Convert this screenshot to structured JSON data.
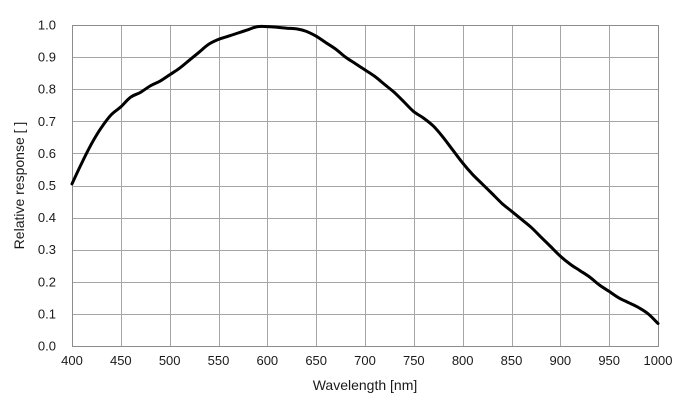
{
  "chart_data": {
    "type": "line",
    "title": "",
    "xlabel": "Wavelength [nm]",
    "ylabel": "Relative response [ ]",
    "xlim": [
      400,
      1000
    ],
    "ylim": [
      0,
      1.0
    ],
    "xticks": [
      400,
      450,
      500,
      550,
      600,
      650,
      700,
      750,
      800,
      850,
      900,
      950,
      1000
    ],
    "yticks": [
      0.0,
      0.1,
      0.2,
      0.3,
      0.4,
      0.5,
      0.6,
      0.7,
      0.8,
      0.9,
      1.0
    ],
    "ytick_labels": [
      "0.0",
      "0.1",
      "0.2",
      "0.3",
      "0.4",
      "0.5",
      "0.6",
      "0.7",
      "0.8",
      "0.9",
      "1.0"
    ],
    "grid": true,
    "legend": "none",
    "series": [
      {
        "color": "#000000",
        "x": [
          400,
          410,
          420,
          430,
          440,
          450,
          460,
          470,
          480,
          490,
          500,
          510,
          520,
          530,
          540,
          550,
          560,
          570,
          580,
          590,
          600,
          610,
          620,
          630,
          640,
          650,
          660,
          670,
          680,
          690,
          700,
          710,
          720,
          730,
          740,
          750,
          760,
          770,
          780,
          790,
          800,
          810,
          820,
          830,
          840,
          850,
          860,
          870,
          880,
          890,
          900,
          910,
          920,
          930,
          940,
          950,
          960,
          970,
          980,
          990,
          1000
        ],
        "y": [
          0.505,
          0.57,
          0.63,
          0.68,
          0.72,
          0.745,
          0.775,
          0.79,
          0.81,
          0.825,
          0.845,
          0.865,
          0.89,
          0.915,
          0.94,
          0.955,
          0.965,
          0.975,
          0.985,
          0.995,
          0.995,
          0.993,
          0.99,
          0.988,
          0.98,
          0.965,
          0.945,
          0.925,
          0.9,
          0.88,
          0.86,
          0.84,
          0.815,
          0.79,
          0.76,
          0.73,
          0.71,
          0.685,
          0.65,
          0.61,
          0.57,
          0.535,
          0.505,
          0.475,
          0.445,
          0.42,
          0.395,
          0.37,
          0.34,
          0.31,
          0.28,
          0.255,
          0.235,
          0.215,
          0.19,
          0.17,
          0.15,
          0.135,
          0.12,
          0.1,
          0.07
        ]
      }
    ]
  }
}
